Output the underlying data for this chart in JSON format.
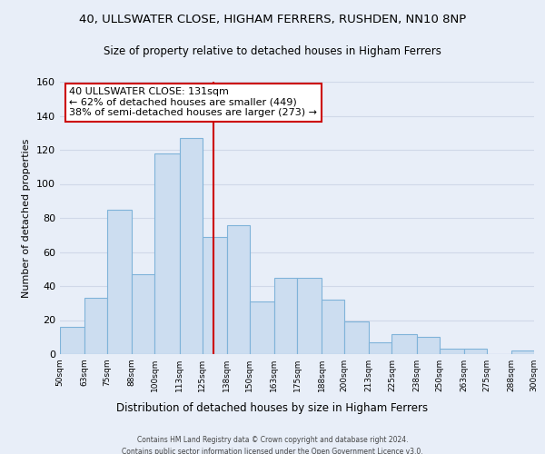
{
  "title1": "40, ULLSWATER CLOSE, HIGHAM FERRERS, RUSHDEN, NN10 8NP",
  "title2": "Size of property relative to detached houses in Higham Ferrers",
  "xlabel": "Distribution of detached houses by size in Higham Ferrers",
  "ylabel": "Number of detached properties",
  "bar_edges": [
    50,
    63,
    75,
    88,
    100,
    113,
    125,
    138,
    150,
    163,
    175,
    188,
    200,
    213,
    225,
    238,
    250,
    263,
    275,
    288,
    300
  ],
  "bar_heights": [
    16,
    33,
    85,
    47,
    118,
    127,
    69,
    76,
    31,
    45,
    45,
    32,
    19,
    7,
    12,
    10,
    3,
    3,
    0,
    2
  ],
  "bar_color": "#ccddf0",
  "bar_edgecolor": "#7fb3d9",
  "vline_x": 131,
  "vline_color": "#cc0000",
  "annotation_title": "40 ULLSWATER CLOSE: 131sqm",
  "annotation_line1": "← 62% of detached houses are smaller (449)",
  "annotation_line2": "38% of semi-detached houses are larger (273) →",
  "annotation_box_edgecolor": "#cc0000",
  "ylim": [
    0,
    160
  ],
  "yticks": [
    0,
    20,
    40,
    60,
    80,
    100,
    120,
    140,
    160
  ],
  "xtick_labels": [
    "50sqm",
    "63sqm",
    "75sqm",
    "88sqm",
    "100sqm",
    "113sqm",
    "125sqm",
    "138sqm",
    "150sqm",
    "163sqm",
    "175sqm",
    "188sqm",
    "200sqm",
    "213sqm",
    "225sqm",
    "238sqm",
    "250sqm",
    "263sqm",
    "275sqm",
    "288sqm",
    "300sqm"
  ],
  "footnote1": "Contains HM Land Registry data © Crown copyright and database right 2024.",
  "footnote2": "Contains public sector information licensed under the Open Government Licence v3.0.",
  "bg_color": "#e8eef8",
  "grid_color": "#d0d8e8",
  "plot_bg_color": "#e8eef8"
}
